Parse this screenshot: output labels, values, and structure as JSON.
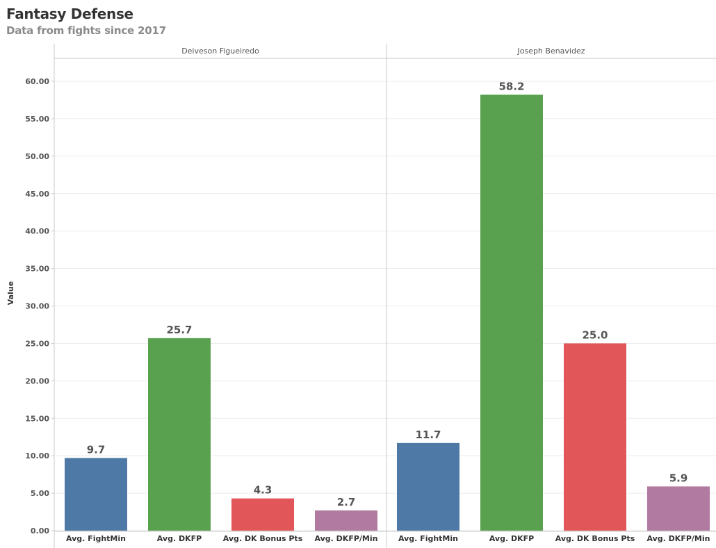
{
  "header": {
    "title": "Fantasy Defense",
    "subtitle": "Data from fights since 2017"
  },
  "chart_data": {
    "type": "bar",
    "ylabel": "Value",
    "ylim": [
      0,
      63
    ],
    "y_ticks": [
      "0.00",
      "5.00",
      "10.00",
      "15.00",
      "20.00",
      "25.00",
      "30.00",
      "35.00",
      "40.00",
      "45.00",
      "50.00",
      "55.00",
      "60.00"
    ],
    "y_tick_values": [
      0,
      5,
      10,
      15,
      20,
      25,
      30,
      35,
      40,
      45,
      50,
      55,
      60
    ],
    "grid": "horizontal",
    "categories": [
      "Avg. FightMin",
      "Avg. DKFP",
      "Avg. DK Bonus Pts",
      "Avg. DKFP/Min"
    ],
    "colors": [
      "#4e79a7",
      "#59a14f",
      "#e15759",
      "#b07aa1"
    ],
    "panels": [
      {
        "name": "Deiveson Figueiredo",
        "values": [
          9.7,
          25.7,
          4.3,
          2.7
        ],
        "labels": [
          "9.7",
          "25.7",
          "4.3",
          "2.7"
        ]
      },
      {
        "name": "Joseph Benavidez",
        "values": [
          11.7,
          58.2,
          25.0,
          5.9
        ],
        "labels": [
          "11.7",
          "58.2",
          "25.0",
          "5.9"
        ]
      }
    ]
  }
}
